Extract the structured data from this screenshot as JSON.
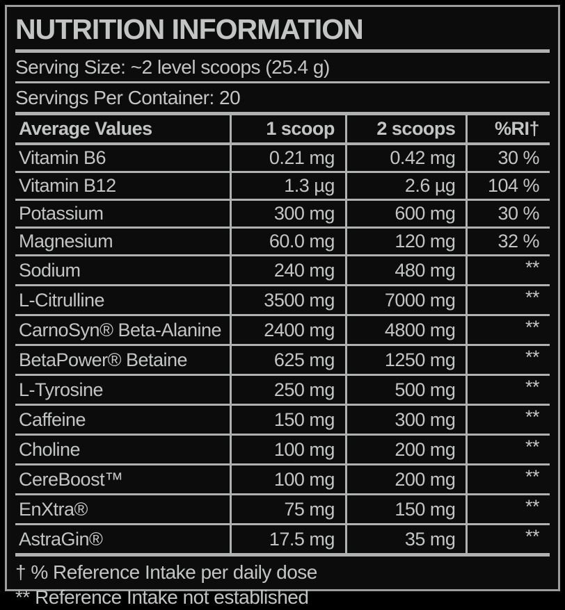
{
  "label": {
    "title": "NUTRITION INFORMATION",
    "serving_size": "Serving Size: ~2 level scoops (25.4 g)",
    "servings_per_container": "Servings Per Container: 20",
    "table": {
      "headers": [
        "Average Values",
        "1 scoop",
        "2 scoops",
        "%RI†"
      ],
      "rows": [
        {
          "name": "Vitamin B6",
          "one_scoop": "0.21 mg",
          "two_scoops": "0.42 mg",
          "ri": "30 %"
        },
        {
          "name": "Vitamin B12",
          "one_scoop": "1.3 µg",
          "two_scoops": "2.6 µg",
          "ri": "104 %"
        },
        {
          "name": "Potassium",
          "one_scoop": "300 mg",
          "two_scoops": "600 mg",
          "ri": "30 %"
        },
        {
          "name": "Magnesium",
          "one_scoop": "60.0 mg",
          "two_scoops": "120 mg",
          "ri": "32 %"
        },
        {
          "name": "Sodium",
          "one_scoop": "240 mg",
          "two_scoops": "480 mg",
          "ri": "**"
        },
        {
          "name": "L-Citrulline",
          "one_scoop": "3500 mg",
          "two_scoops": "7000 mg",
          "ri": "**"
        },
        {
          "name": "CarnoSyn® Beta-Alanine",
          "one_scoop": "2400 mg",
          "two_scoops": "4800 mg",
          "ri": "**"
        },
        {
          "name": "BetaPower® Betaine",
          "one_scoop": "625 mg",
          "two_scoops": "1250 mg",
          "ri": "**"
        },
        {
          "name": "L-Tyrosine",
          "one_scoop": "250 mg",
          "two_scoops": "500 mg",
          "ri": "**"
        },
        {
          "name": "Caffeine",
          "one_scoop": "150 mg",
          "two_scoops": "300 mg",
          "ri": "**"
        },
        {
          "name": "Choline",
          "one_scoop": "100 mg",
          "two_scoops": "200 mg",
          "ri": "**"
        },
        {
          "name": "CereBoost™",
          "one_scoop": "100 mg",
          "two_scoops": "200 mg",
          "ri": "**"
        },
        {
          "name": "EnXtra®",
          "one_scoop": "75 mg",
          "two_scoops": "150 mg",
          "ri": "**"
        },
        {
          "name": "AstraGin®",
          "one_scoop": "17.5 mg",
          "two_scoops": "35 mg",
          "ri": "**"
        }
      ]
    },
    "footnotes": [
      "† % Reference Intake per daily dose",
      "** Reference Intake not established"
    ],
    "colors": {
      "background": "#0c0c0c",
      "text": "#c3c5c4",
      "rule": "#b0b2b1",
      "outer_border": "#9b9d9c"
    }
  }
}
